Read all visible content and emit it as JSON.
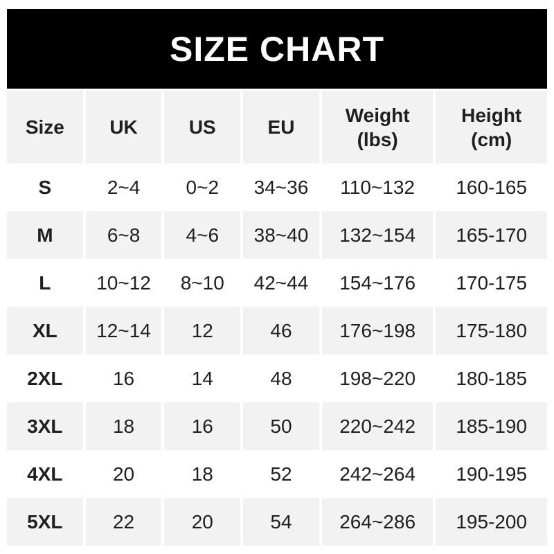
{
  "banner": {
    "title": "SIZE CHART",
    "background_color": "#000000",
    "text_color": "#ffffff"
  },
  "table": {
    "header_background": "#f2f2f2",
    "alt_row_background": "#f2f2f2",
    "row_background": "#ffffff",
    "text_color": "#1f1f1f",
    "columns": [
      {
        "key": "size",
        "label": "Size"
      },
      {
        "key": "uk",
        "label": "UK"
      },
      {
        "key": "us",
        "label": "US"
      },
      {
        "key": "eu",
        "label": "EU"
      },
      {
        "key": "weight",
        "label": "Weight\n(lbs)"
      },
      {
        "key": "height",
        "label": "Height\n(cm)"
      }
    ],
    "rows": [
      {
        "size": "S",
        "uk": "2~4",
        "us": "0~2",
        "eu": "34~36",
        "weight": "110~132",
        "height": "160-165"
      },
      {
        "size": "M",
        "uk": "6~8",
        "us": "4~6",
        "eu": "38~40",
        "weight": "132~154",
        "height": "165-170"
      },
      {
        "size": "L",
        "uk": "10~12",
        "us": "8~10",
        "eu": "42~44",
        "weight": "154~176",
        "height": "170-175"
      },
      {
        "size": "XL",
        "uk": "12~14",
        "us": "12",
        "eu": "46",
        "weight": "176~198",
        "height": "175-180"
      },
      {
        "size": "2XL",
        "uk": "16",
        "us": "14",
        "eu": "48",
        "weight": "198~220",
        "height": "180-185"
      },
      {
        "size": "3XL",
        "uk": "18",
        "us": "16",
        "eu": "50",
        "weight": "220~242",
        "height": "185-190"
      },
      {
        "size": "4XL",
        "uk": "20",
        "us": "18",
        "eu": "52",
        "weight": "242~264",
        "height": "190-195"
      },
      {
        "size": "5XL",
        "uk": "22",
        "us": "20",
        "eu": "54",
        "weight": "264~286",
        "height": "195-200"
      }
    ]
  },
  "chart_data": {
    "type": "table",
    "title": "SIZE CHART",
    "columns": [
      "Size",
      "UK",
      "US",
      "EU",
      "Weight (lbs)",
      "Height (cm)"
    ],
    "rows": [
      [
        "S",
        "2~4",
        "0~2",
        "34~36",
        "110~132",
        "160-165"
      ],
      [
        "M",
        "6~8",
        "4~6",
        "38~40",
        "132~154",
        "165-170"
      ],
      [
        "L",
        "10~12",
        "8~10",
        "42~44",
        "154~176",
        "170-175"
      ],
      [
        "XL",
        "12~14",
        "12",
        "46",
        "176~198",
        "175-180"
      ],
      [
        "2XL",
        "16",
        "14",
        "48",
        "198~220",
        "180-185"
      ],
      [
        "3XL",
        "18",
        "16",
        "50",
        "220~242",
        "185-190"
      ],
      [
        "4XL",
        "20",
        "18",
        "52",
        "242~264",
        "190-195"
      ],
      [
        "5XL",
        "22",
        "20",
        "54",
        "264~286",
        "195-200"
      ]
    ],
    "layout": {
      "banner_background": "#000000",
      "header_row_background": "#f2f2f2",
      "alternating_rows": "odd rows white, even rows #f2f2f2",
      "column_gutter_color": "#ffffff"
    }
  }
}
